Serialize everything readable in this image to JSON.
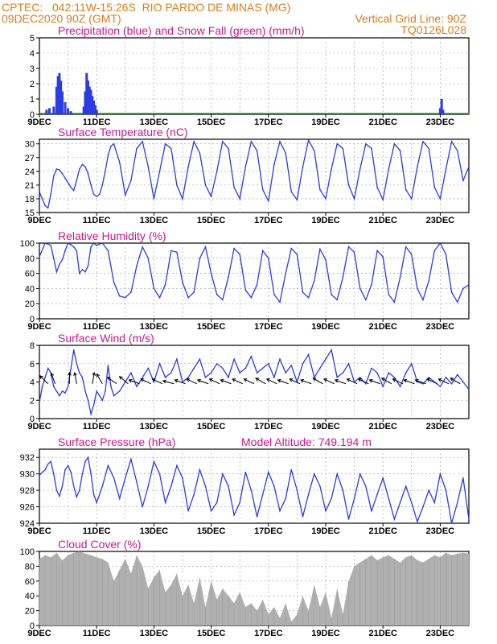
{
  "header": {
    "line1_left": "CPTEC:   042:11W-15:26S  RIO PARDO DE MINAS (MG)",
    "line2_left": "09DEC2020 90Z (GMT)",
    "line2_right": "Vertical Grid Line: 90Z",
    "line3_right": "TQ0126L028"
  },
  "colors": {
    "header": "#e07b1a",
    "title": "#d0148c",
    "series": "#2a3de0",
    "snow": "#22aa22",
    "cloud": "#b0b0b0",
    "grid": "#999999"
  },
  "x_axis": {
    "labels": [
      "9DEC",
      "11DEC",
      "13DEC",
      "15DEC",
      "17DEC",
      "19DEC",
      "21DEC",
      "23DEC"
    ],
    "start_day": 9,
    "end_day": 24
  },
  "chart_data": [
    {
      "type": "bar",
      "title": "Precipitation (blue) and Snow Fall (green) (mm/h)",
      "ylim": [
        0,
        5
      ],
      "yticks": [
        0,
        1,
        2,
        3,
        4,
        5
      ],
      "series": [
        {
          "name": "Precipitation",
          "values": [
            [
              9.25,
              0.3
            ],
            [
              9.35,
              0.4
            ],
            [
              9.5,
              0.5
            ],
            [
              9.6,
              1.8
            ],
            [
              9.65,
              2.5
            ],
            [
              9.7,
              2.7
            ],
            [
              9.75,
              2.2
            ],
            [
              9.8,
              1.5
            ],
            [
              9.9,
              0.8
            ],
            [
              10.0,
              0.4
            ],
            [
              10.1,
              0.2
            ],
            [
              10.55,
              0.5
            ],
            [
              10.6,
              1.5
            ],
            [
              10.65,
              2.7
            ],
            [
              10.7,
              2.2
            ],
            [
              10.75,
              1.8
            ],
            [
              10.8,
              1.6
            ],
            [
              10.85,
              1.2
            ],
            [
              10.9,
              0.9
            ],
            [
              10.95,
              0.6
            ],
            [
              11.0,
              0.3
            ],
            [
              23.0,
              0.4
            ],
            [
              23.05,
              1.0
            ],
            [
              23.1,
              0.3
            ]
          ]
        },
        {
          "name": "Snow Fall",
          "values": []
        }
      ]
    },
    {
      "type": "line",
      "title": "Surface Temperature (nC)",
      "ylim": [
        15,
        31
      ],
      "yticks": [
        15,
        18,
        21,
        24,
        27,
        30
      ],
      "x": [
        9.0,
        9.1,
        9.2,
        9.3,
        9.4,
        9.5,
        9.6,
        9.7,
        9.8,
        9.9,
        10.0,
        10.1,
        10.2,
        10.3,
        10.4,
        10.5,
        10.6,
        10.7,
        10.8,
        10.9,
        11.0,
        11.1,
        11.2,
        11.3,
        11.4,
        11.5,
        11.6,
        11.8,
        12.0,
        12.2,
        12.4,
        12.6,
        12.8,
        13.0,
        13.2,
        13.4,
        13.6,
        13.8,
        14.0,
        14.2,
        14.4,
        14.6,
        14.8,
        15.0,
        15.2,
        15.4,
        15.6,
        15.8,
        16.0,
        16.2,
        16.4,
        16.6,
        16.8,
        17.0,
        17.2,
        17.4,
        17.6,
        17.8,
        18.0,
        18.2,
        18.4,
        18.6,
        18.8,
        19.0,
        19.2,
        19.4,
        19.6,
        19.8,
        20.0,
        20.2,
        20.4,
        20.6,
        20.8,
        21.0,
        21.2,
        21.4,
        21.6,
        21.8,
        22.0,
        22.2,
        22.4,
        22.6,
        22.8,
        23.0,
        23.2,
        23.4,
        23.6,
        23.8,
        24.0
      ],
      "values": [
        19.5,
        18.0,
        16.5,
        16.0,
        19.0,
        23.0,
        24.5,
        24.3,
        23.5,
        22.5,
        21.5,
        20.5,
        19.8,
        22.0,
        24.5,
        25.5,
        25.0,
        23.5,
        21.0,
        19.0,
        18.5,
        19.0,
        21.0,
        24.0,
        27.5,
        29.5,
        30.0,
        26.0,
        18.8,
        22.0,
        29.0,
        30.5,
        25.0,
        18.0,
        24.0,
        30.0,
        29.0,
        21.0,
        18.0,
        25.0,
        30.5,
        28.0,
        21.0,
        18.5,
        24.0,
        30.5,
        29.0,
        20.5,
        18.0,
        25.0,
        30.5,
        28.5,
        20.0,
        17.5,
        25.5,
        30.5,
        28.0,
        19.5,
        17.8,
        25.0,
        30.8,
        28.5,
        20.0,
        18.0,
        24.5,
        30.0,
        29.0,
        21.0,
        18.0,
        24.5,
        30.0,
        29.0,
        20.5,
        17.8,
        24.5,
        30.0,
        28.5,
        20.0,
        18.0,
        25.0,
        30.5,
        29.0,
        20.5,
        18.0,
        24.5,
        30.5,
        28.5,
        22.0,
        25.0
      ]
    },
    {
      "type": "line",
      "title": "Relative Humidity (%)",
      "ylim": [
        0,
        100
      ],
      "yticks": [
        0,
        20,
        40,
        60,
        80,
        100
      ],
      "x": [
        9.0,
        9.2,
        9.4,
        9.5,
        9.6,
        9.7,
        9.8,
        9.9,
        10.0,
        10.1,
        10.2,
        10.3,
        10.4,
        10.5,
        10.6,
        10.7,
        10.8,
        10.9,
        11.0,
        11.2,
        11.4,
        11.6,
        11.8,
        12.0,
        12.2,
        12.4,
        12.6,
        12.8,
        13.0,
        13.2,
        13.4,
        13.6,
        13.8,
        14.0,
        14.2,
        14.4,
        14.6,
        14.8,
        15.0,
        15.2,
        15.4,
        15.6,
        15.8,
        16.0,
        16.2,
        16.4,
        16.6,
        16.8,
        17.0,
        17.2,
        17.4,
        17.6,
        17.8,
        18.0,
        18.2,
        18.4,
        18.6,
        18.8,
        19.0,
        19.2,
        19.4,
        19.6,
        19.8,
        20.0,
        20.2,
        20.4,
        20.6,
        20.8,
        21.0,
        21.2,
        21.4,
        21.6,
        21.8,
        22.0,
        22.2,
        22.4,
        22.6,
        22.8,
        23.0,
        23.2,
        23.4,
        23.6,
        23.8,
        24.0
      ],
      "values": [
        82,
        100,
        97,
        80,
        62,
        72,
        78,
        90,
        100,
        98,
        95,
        90,
        60,
        65,
        62,
        70,
        95,
        100,
        97,
        100,
        90,
        48,
        30,
        28,
        35,
        70,
        95,
        80,
        40,
        28,
        45,
        90,
        88,
        48,
        28,
        35,
        80,
        95,
        60,
        32,
        25,
        55,
        93,
        85,
        38,
        28,
        45,
        90,
        80,
        32,
        22,
        60,
        93,
        85,
        35,
        28,
        50,
        92,
        78,
        32,
        25,
        55,
        95,
        88,
        40,
        25,
        45,
        90,
        82,
        32,
        22,
        55,
        95,
        85,
        40,
        25,
        50,
        90,
        100,
        85,
        35,
        22,
        40,
        45
      ]
    },
    {
      "type": "line",
      "title": "Surface Wind (m/s)",
      "ylim": [
        0,
        8
      ],
      "yticks": [
        0,
        2,
        4,
        6,
        8
      ],
      "x": [
        9.0,
        9.1,
        9.2,
        9.3,
        9.4,
        9.5,
        9.6,
        9.7,
        9.8,
        9.9,
        10.0,
        10.1,
        10.2,
        10.3,
        10.4,
        10.5,
        10.6,
        10.7,
        10.8,
        10.9,
        11.0,
        11.1,
        11.2,
        11.3,
        11.4,
        11.5,
        11.6,
        11.8,
        12.0,
        12.2,
        12.4,
        12.6,
        12.8,
        13.0,
        13.2,
        13.4,
        13.6,
        13.8,
        14.0,
        14.2,
        14.4,
        14.6,
        14.8,
        15.0,
        15.2,
        15.4,
        15.6,
        15.8,
        16.0,
        16.2,
        16.4,
        16.6,
        16.8,
        17.0,
        17.2,
        17.4,
        17.6,
        17.8,
        18.0,
        18.2,
        18.4,
        18.6,
        18.8,
        19.0,
        19.2,
        19.4,
        19.6,
        19.8,
        20.0,
        20.2,
        20.4,
        20.6,
        20.8,
        21.0,
        21.2,
        21.4,
        21.6,
        21.8,
        22.0,
        22.2,
        22.4,
        22.6,
        22.8,
        23.0,
        23.2,
        23.4,
        23.6,
        23.8,
        24.0
      ],
      "values": [
        1.8,
        3.5,
        4.5,
        5.5,
        5.0,
        3.5,
        3.0,
        2.5,
        3.0,
        2.8,
        3.5,
        5.5,
        7.5,
        6.0,
        5.0,
        4.5,
        3.0,
        2.0,
        0.5,
        1.5,
        3.0,
        2.5,
        2.0,
        3.0,
        5.8,
        3.5,
        2.5,
        3.0,
        4.0,
        5.0,
        3.5,
        4.5,
        5.5,
        4.0,
        6.0,
        4.5,
        5.0,
        6.5,
        4.0,
        4.5,
        5.5,
        6.5,
        4.5,
        5.0,
        6.0,
        5.5,
        4.5,
        6.5,
        5.0,
        5.5,
        6.8,
        5.0,
        5.5,
        6.0,
        4.5,
        6.5,
        5.0,
        5.8,
        4.0,
        6.0,
        7.0,
        4.5,
        5.5,
        6.5,
        7.5,
        4.5,
        5.0,
        6.0,
        4.0,
        4.5,
        3.8,
        5.5,
        5.0,
        3.5,
        5.0,
        4.5,
        3.5,
        5.0,
        6.0,
        4.0,
        3.8,
        4.5,
        4.0,
        3.5,
        4.5,
        3.8,
        4.8,
        4.0,
        3.2
      ],
      "arrows": [
        [
          9.3,
          225
        ],
        [
          9.55,
          200
        ],
        [
          10.05,
          180
        ],
        [
          10.3,
          190
        ],
        [
          10.85,
          170
        ],
        [
          11.2,
          210
        ],
        [
          11.7,
          235
        ],
        [
          12.1,
          230
        ],
        [
          12.5,
          250
        ],
        [
          12.9,
          245
        ],
        [
          13.3,
          245
        ],
        [
          13.7,
          255
        ],
        [
          14.1,
          250
        ],
        [
          14.5,
          245
        ],
        [
          14.9,
          250
        ],
        [
          15.3,
          245
        ],
        [
          15.7,
          250
        ],
        [
          16.1,
          245
        ],
        [
          16.5,
          245
        ],
        [
          16.9,
          240
        ],
        [
          17.3,
          245
        ],
        [
          17.7,
          250
        ],
        [
          18.1,
          245
        ],
        [
          18.5,
          250
        ],
        [
          18.9,
          240
        ],
        [
          19.3,
          245
        ],
        [
          19.7,
          250
        ],
        [
          20.1,
          245
        ],
        [
          20.5,
          245
        ],
        [
          20.9,
          250
        ],
        [
          21.3,
          240
        ],
        [
          21.7,
          245
        ],
        [
          22.1,
          250
        ],
        [
          22.5,
          250
        ],
        [
          22.9,
          245
        ],
        [
          23.3,
          245
        ],
        [
          23.7,
          240
        ]
      ]
    },
    {
      "type": "line",
      "title": "Surface Pressure (hPa)",
      "subtitle": "Model Altitude: 749.194 m",
      "ylim": [
        924,
        933
      ],
      "yticks": [
        924,
        926,
        928,
        930,
        932
      ],
      "x": [
        9.0,
        9.1,
        9.2,
        9.3,
        9.4,
        9.5,
        9.6,
        9.7,
        9.8,
        9.9,
        10.0,
        10.1,
        10.2,
        10.3,
        10.4,
        10.5,
        10.6,
        10.7,
        10.8,
        10.9,
        11.0,
        11.2,
        11.4,
        11.6,
        11.8,
        12.0,
        12.2,
        12.4,
        12.6,
        12.8,
        13.0,
        13.2,
        13.4,
        13.6,
        13.8,
        14.0,
        14.2,
        14.4,
        14.6,
        14.8,
        15.0,
        15.2,
        15.4,
        15.6,
        15.8,
        16.0,
        16.2,
        16.4,
        16.6,
        16.8,
        17.0,
        17.2,
        17.4,
        17.6,
        17.8,
        18.0,
        18.2,
        18.4,
        18.6,
        18.8,
        19.0,
        19.2,
        19.4,
        19.6,
        19.8,
        20.0,
        20.2,
        20.4,
        20.6,
        20.8,
        21.0,
        21.2,
        21.4,
        21.6,
        21.8,
        22.0,
        22.2,
        22.4,
        22.6,
        22.8,
        23.0,
        23.2,
        23.4,
        23.6,
        23.8,
        24.0
      ],
      "values": [
        929.8,
        930.2,
        930.5,
        931.2,
        931.5,
        930.0,
        928.0,
        927.3,
        928.5,
        930.5,
        931.0,
        930.2,
        928.5,
        927.2,
        928.0,
        930.0,
        931.5,
        932.0,
        930.0,
        927.5,
        926.5,
        928.5,
        931.0,
        929.5,
        927.0,
        929.5,
        931.8,
        929.0,
        926.0,
        928.5,
        931.5,
        930.0,
        926.5,
        928.5,
        931.0,
        929.5,
        925.5,
        927.5,
        930.5,
        928.5,
        925.5,
        926.5,
        930.0,
        928.5,
        925.0,
        926.5,
        930.2,
        928.0,
        924.8,
        927.5,
        930.2,
        928.5,
        925.5,
        927.0,
        930.5,
        928.0,
        924.8,
        927.5,
        930.0,
        928.5,
        925.5,
        927.0,
        930.0,
        928.0,
        924.5,
        927.0,
        930.0,
        928.5,
        925.5,
        927.5,
        929.5,
        927.0,
        924.5,
        926.5,
        928.5,
        926.5,
        924.2,
        926.0,
        928.0,
        926.5,
        930.0,
        928.0,
        924.0,
        926.5,
        929.5,
        924.5
      ]
    },
    {
      "type": "area",
      "title": "Cloud Cover (%)",
      "ylim": [
        0,
        100
      ],
      "yticks": [
        0,
        20,
        40,
        60,
        80,
        100
      ],
      "x": [
        9.0,
        9.2,
        9.4,
        9.6,
        9.8,
        10.0,
        10.2,
        10.4,
        10.6,
        10.8,
        11.0,
        11.2,
        11.4,
        11.6,
        11.8,
        12.0,
        12.2,
        12.4,
        12.6,
        12.8,
        13.0,
        13.2,
        13.4,
        13.6,
        13.8,
        14.0,
        14.2,
        14.4,
        14.6,
        14.8,
        15.0,
        15.2,
        15.4,
        15.6,
        15.8,
        16.0,
        16.2,
        16.4,
        16.6,
        16.8,
        17.0,
        17.2,
        17.4,
        17.6,
        17.8,
        18.0,
        18.2,
        18.4,
        18.6,
        18.8,
        19.0,
        19.2,
        19.4,
        19.6,
        19.8,
        20.0,
        20.2,
        20.4,
        20.6,
        20.8,
        21.0,
        21.2,
        21.4,
        21.6,
        21.8,
        22.0,
        22.2,
        22.4,
        22.6,
        22.8,
        23.0,
        23.2,
        23.4,
        23.6,
        23.8,
        24.0
      ],
      "values": [
        90,
        95,
        92,
        98,
        88,
        95,
        98,
        100,
        97,
        95,
        92,
        90,
        85,
        60,
        75,
        90,
        70,
        95,
        80,
        50,
        65,
        75,
        45,
        55,
        70,
        40,
        55,
        30,
        65,
        25,
        60,
        35,
        50,
        40,
        30,
        45,
        25,
        30,
        20,
        35,
        15,
        25,
        10,
        30,
        5,
        15,
        40,
        20,
        55,
        25,
        45,
        10,
        50,
        15,
        60,
        80,
        85,
        90,
        95,
        88,
        92,
        95,
        90,
        85,
        92,
        95,
        88,
        85,
        90,
        95,
        92,
        98,
        95,
        97,
        98,
        97
      ]
    }
  ]
}
